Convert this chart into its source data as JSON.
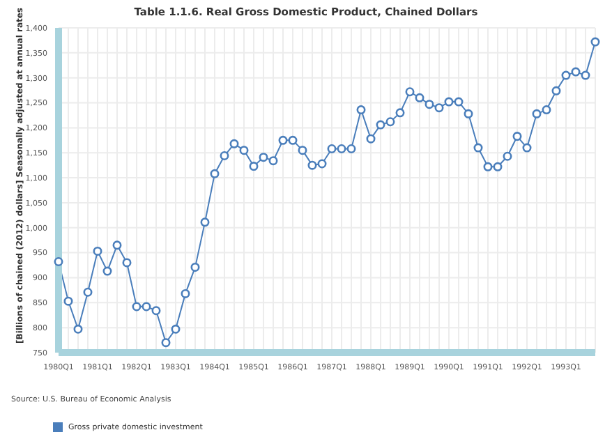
{
  "chart_data": {
    "type": "line",
    "title": "Table 1.1.6. Real Gross Domestic Product, Chained Dollars",
    "ylabel": "[Billions of chained (2012) dollars] Seasonally adjusted at annual rates",
    "annotations": [
      "Source: U.S. Bureau of Economic Analysis"
    ],
    "categories": [
      "1980Q1",
      null,
      null,
      null,
      "1981Q1",
      null,
      null,
      null,
      "1982Q1",
      null,
      null,
      null,
      "1983Q1",
      null,
      null,
      null,
      "1984Q1",
      null,
      null,
      null,
      "1985Q1",
      null,
      null,
      null,
      "1986Q1",
      null,
      null,
      null,
      "1987Q1",
      null,
      null,
      null,
      "1988Q1",
      null,
      null,
      null,
      "1989Q1",
      null,
      null,
      null,
      "1990Q1",
      null,
      null,
      null,
      "1991Q1",
      null,
      null,
      null,
      "1992Q1",
      null,
      null,
      null,
      "1993Q1",
      null,
      null,
      null
    ],
    "series": [
      {
        "name": "Gross private domestic investment",
        "color": "#4a7ebb",
        "values": [
          932,
          853,
          797,
          871,
          953,
          913,
          965,
          930,
          842,
          842,
          834,
          770,
          797,
          868,
          921,
          1011,
          1108,
          1144,
          1168,
          1155,
          1123,
          1141,
          1134,
          1175,
          1175,
          1155,
          1125,
          1128,
          1158,
          1158,
          1158,
          1236,
          1178,
          1206,
          1212,
          1230,
          1272,
          1260,
          1247,
          1240,
          1252,
          1252,
          1228,
          1160,
          1122,
          1122,
          1143,
          1183,
          1160,
          1228,
          1236,
          1274,
          1305,
          1312,
          1305,
          1372
        ]
      }
    ],
    "ylim": [
      750,
      1400
    ],
    "yticks": [
      750,
      800,
      850,
      900,
      950,
      {
        "value": 1000,
        "label": "1,000"
      },
      {
        "value": 1050,
        "label": "1,050"
      },
      {
        "value": 1100,
        "label": "1,100"
      },
      {
        "value": 1150,
        "label": "1,150"
      },
      {
        "value": 1200,
        "label": "1,200"
      },
      {
        "value": 1250,
        "label": "1,250"
      },
      {
        "value": 1300,
        "label": "1,300"
      },
      {
        "value": 1350,
        "label": "1,350"
      },
      {
        "value": 1400,
        "label": "1,400"
      }
    ],
    "grid": true,
    "legend": "bottom left",
    "marker": "circle",
    "line_style": "solid"
  }
}
